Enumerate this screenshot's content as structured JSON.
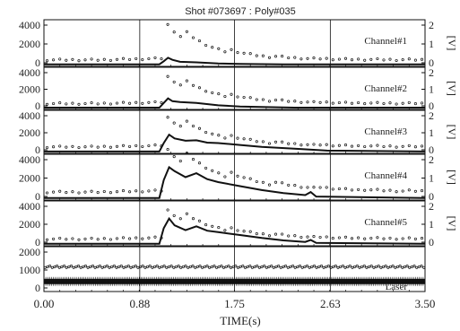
{
  "chart_data": {
    "type": "line",
    "title": "Shot #073697 : Poly#035",
    "xlabel": "TIME(s)",
    "xlim": [
      0,
      3.5
    ],
    "x_ticks": [
      "0.00",
      "0.88",
      "1.75",
      "2.63",
      "3.50"
    ],
    "x_gridlines": [
      0.88,
      1.75,
      2.63
    ],
    "panels": [
      {
        "name": "Channel#1",
        "left_ticks": [
          "4000",
          "2000",
          "0"
        ],
        "right_ticks": [
          "2",
          "1",
          "0"
        ],
        "right_unit": "[V]",
        "ylim_left": [
          -200,
          4400
        ],
        "ylim_right": [
          -0.1,
          2.2
        ],
        "series": [
          {
            "style": "line",
            "x": [
              0.0,
              1.06,
              1.1,
              1.14,
              1.18,
              1.25,
              1.4,
              1.6,
              1.8,
              2.2,
              3.5
            ],
            "y": [
              0,
              0,
              300,
              650,
              450,
              250,
              200,
              80,
              40,
              0,
              0
            ]
          },
          {
            "style": "dots",
            "baseline": 0.22,
            "pulse": [
              1.12,
              1.9,
              0.4
            ]
          }
        ]
      },
      {
        "name": "Channel#2",
        "left_ticks": [
          "4000",
          "2000",
          "0"
        ],
        "right_ticks": [
          "2",
          "1",
          "0"
        ],
        "right_unit": "[V]",
        "ylim_left": [
          -200,
          4400
        ],
        "ylim_right": [
          -0.1,
          2.2
        ],
        "series": [
          {
            "style": "line",
            "x": [
              0.0,
              1.06,
              1.1,
              1.14,
              1.18,
              1.25,
              1.4,
              1.6,
              1.8,
              2.3,
              3.5
            ],
            "y": [
              0,
              0,
              500,
              1000,
              700,
              600,
              500,
              250,
              120,
              0,
              0
            ]
          },
          {
            "style": "dots",
            "baseline": 0.22,
            "pulse": [
              1.12,
              1.6,
              0.45
            ]
          }
        ]
      },
      {
        "name": "Channel#3",
        "left_ticks": [
          "4000",
          "2000",
          "0"
        ],
        "right_ticks": [
          "2",
          "1",
          "0"
        ],
        "right_unit": "[V]",
        "ylim_left": [
          -200,
          4400
        ],
        "ylim_right": [
          -0.1,
          2.2
        ],
        "series": [
          {
            "style": "line",
            "x": [
              0.0,
              1.06,
              1.1,
              1.15,
              1.2,
              1.3,
              1.4,
              1.5,
              1.6,
              1.8,
              2.0,
              2.3,
              2.6,
              3.5
            ],
            "y": [
              0,
              0,
              900,
              1800,
              1400,
              1150,
              1200,
              950,
              900,
              700,
              500,
              300,
              100,
              0
            ]
          },
          {
            "style": "dots",
            "baseline": 0.25,
            "pulse": [
              1.12,
              1.7,
              0.5
            ]
          }
        ]
      },
      {
        "name": "Channel#4",
        "left_ticks": [
          "4000",
          "2000",
          "0"
        ],
        "right_ticks": [
          "2",
          "1",
          "0"
        ],
        "right_unit": "[V]",
        "ylim_left": [
          -200,
          4400
        ],
        "ylim_right": [
          -0.1,
          2.2
        ],
        "series": [
          {
            "style": "line",
            "x": [
              0.0,
              1.06,
              1.1,
              1.15,
              1.2,
              1.3,
              1.4,
              1.5,
              1.6,
              1.8,
              2.0,
              2.2,
              2.4,
              2.45,
              2.5,
              3.5
            ],
            "y": [
              0,
              0,
              1800,
              3100,
              2700,
              2100,
              2500,
              1900,
              1600,
              1200,
              800,
              500,
              300,
              600,
              150,
              0
            ]
          },
          {
            "style": "dots",
            "baseline": 0.3,
            "pulse": [
              1.12,
              2.3,
              0.6
            ]
          }
        ]
      },
      {
        "name": "Channel#5",
        "left_ticks": [
          "4000",
          "2000",
          "0"
        ],
        "right_ticks": [
          "2",
          "1",
          "0"
        ],
        "right_unit": "[V]",
        "ylim_left": [
          -200,
          4400
        ],
        "ylim_right": [
          -0.1,
          2.2
        ],
        "series": [
          {
            "style": "line",
            "x": [
              0.0,
              1.06,
              1.1,
              1.15,
              1.2,
              1.3,
              1.4,
              1.5,
              1.6,
              1.8,
              2.0,
              2.2,
              2.4,
              2.45,
              2.5,
              3.5
            ],
            "y": [
              0,
              0,
              1600,
              2600,
              1900,
              1400,
              1800,
              1350,
              1200,
              900,
              600,
              350,
              200,
              400,
              100,
              0
            ]
          },
          {
            "style": "dots",
            "baseline": 0.25,
            "pulse": [
              1.12,
              1.6,
              0.5
            ]
          }
        ]
      },
      {
        "name": "Laser",
        "left_ticks": [
          "2000",
          "1000",
          "0"
        ],
        "right_ticks": [],
        "right_unit": "",
        "ylim_left": [
          -150,
          2300
        ],
        "ylim_right": [
          0,
          1
        ],
        "series": [
          {
            "style": "dots",
            "axis": "left",
            "value": 1200
          },
          {
            "style": "band",
            "axis": "left",
            "value": 400
          }
        ]
      }
    ]
  }
}
